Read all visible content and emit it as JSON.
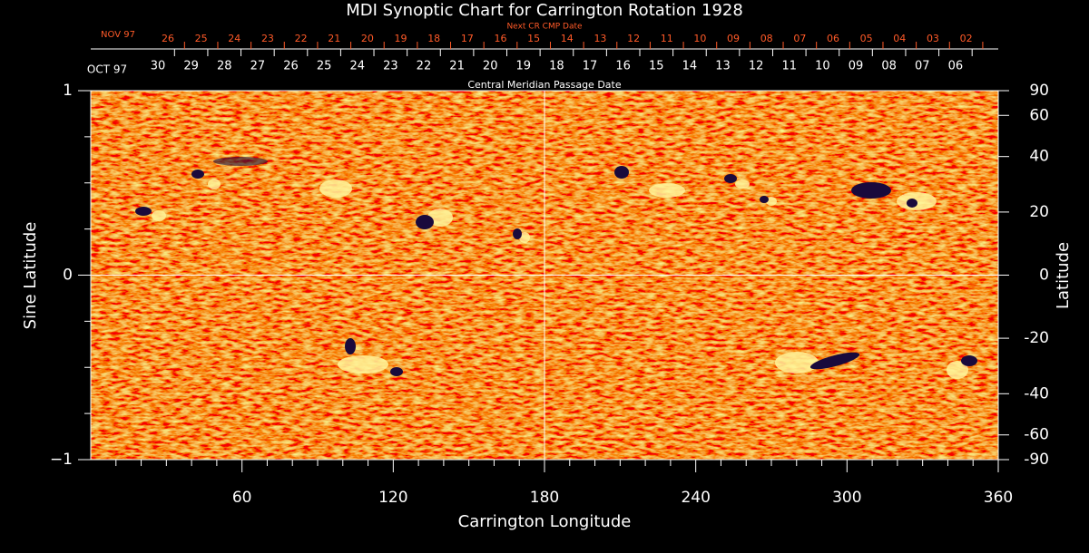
{
  "chart_data": {
    "type": "synoptic-map",
    "title": "MDI Synoptic Chart for Carrington Rotation 1928",
    "xlabel": "Carrington Longitude",
    "ylabel": "Sine Latitude",
    "y2label": "Latitude",
    "xlim": [
      0,
      360
    ],
    "xticks": [
      60,
      120,
      180,
      240,
      300,
      360
    ],
    "xminorticks": [
      10,
      20,
      30,
      40,
      50,
      70,
      80,
      90,
      100,
      110,
      130,
      140,
      150,
      160,
      170,
      190,
      200,
      210,
      220,
      230,
      250,
      260,
      270,
      280,
      290,
      310,
      320,
      330,
      340,
      350
    ],
    "ylim": [
      -1,
      1
    ],
    "yticks": [
      {
        "value": -1,
        "label": "−1"
      },
      0,
      1
    ],
    "yminorticks": [
      -0.75,
      -0.5,
      -0.25,
      0.25,
      0.5,
      0.75
    ],
    "y2lim": [
      -90,
      90
    ],
    "y2scale": "sine",
    "y2ticks": [
      -90,
      -60,
      -40,
      -20,
      0,
      20,
      40,
      60,
      90
    ],
    "grid_x": [
      180
    ],
    "grid_y": [
      0
    ],
    "cmp_dates": {
      "title": "Central Meridian Passage Date",
      "month": "OCT 97",
      "color": "#ffffff",
      "labels": [
        "30",
        "29",
        "28",
        "27",
        "26",
        "25",
        "24",
        "23",
        "22",
        "21",
        "20",
        "19",
        "18",
        "17",
        "16",
        "15",
        "14",
        "13",
        "12",
        "11",
        "10",
        "09",
        "08",
        "07",
        "06"
      ]
    },
    "next_cr_dates": {
      "title": "Next CR CMP Date",
      "month": "NOV 97",
      "color": "#ff5a28",
      "labels": [
        "26",
        "25",
        "24",
        "23",
        "22",
        "21",
        "20",
        "19",
        "18",
        "17",
        "16",
        "15",
        "14",
        "13",
        "12",
        "11",
        "10",
        "09",
        "08",
        "07",
        "06",
        "05",
        "04",
        "03",
        "02"
      ]
    }
  }
}
